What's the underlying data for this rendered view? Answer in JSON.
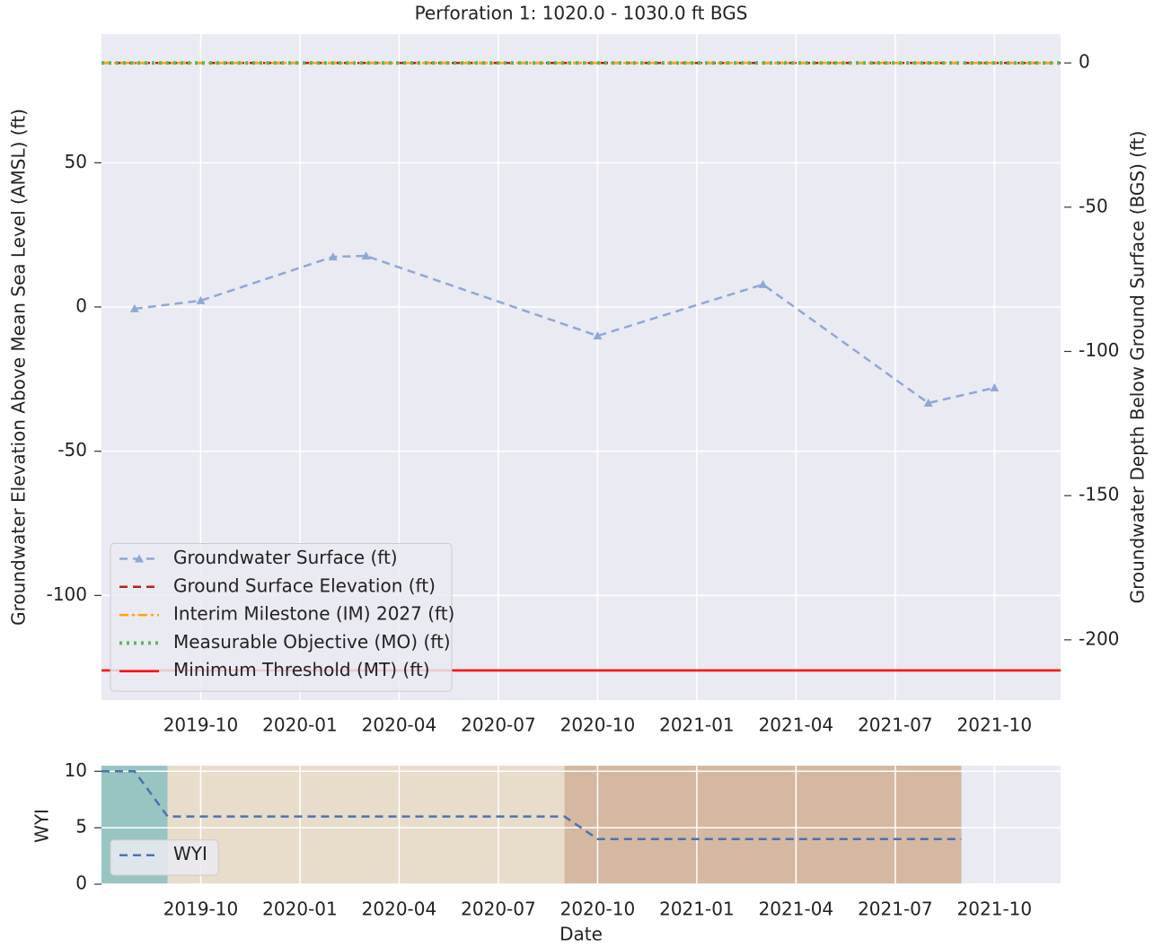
{
  "chart_data": [
    {
      "type": "line",
      "title": "Perforation 1: 1020.0 - 1030.0 ft BGS",
      "ylabel": "Groundwater Elevation Above Mean Sea Level (AMSL) (ft)",
      "y2label": "Groundwater Depth Below Ground Surface (BGS) (ft)",
      "x": [
        "2019-08",
        "2019-10",
        "2020-02",
        "2020-03",
        "2020-10",
        "2021-03",
        "2021-08",
        "2021-10"
      ],
      "series": [
        {
          "name": "Groundwater Surface (ft)",
          "color": "#8fa8d6",
          "style": "dashed",
          "marker": "triangle",
          "values": [
            -0.6,
            2.2,
            17.4,
            17.7,
            -10,
            7.8,
            -33.3,
            -28
          ]
        }
      ],
      "hlines": [
        {
          "name": "Ground Surface Elevation (ft)",
          "color": "#b22222",
          "style": "dashed",
          "value": 84.6
        },
        {
          "name": "Interim Milestone (IM) 2027 (ft)",
          "color": "#ffa500",
          "style": "dashdot",
          "value": 84.6
        },
        {
          "name": "Measurable Objective (MO) (ft)",
          "color": "#5cb85c",
          "style": "dotted",
          "value": 84.6
        },
        {
          "name": "Minimum Threshold (MT) (ft)",
          "color": "#ff0000",
          "style": "solid",
          "value": -126
        }
      ],
      "xlim": [
        "2019-07",
        "2021-12"
      ],
      "xticks": [
        "2019-10",
        "2020-01",
        "2020-04",
        "2020-07",
        "2020-10",
        "2021-01",
        "2021-04",
        "2021-07",
        "2021-10"
      ],
      "ylim": [
        -136.3,
        94.6
      ],
      "yticks": [
        -100,
        -50,
        0,
        50
      ],
      "y2lim": [
        -220.9,
        10
      ],
      "y2ticks": [
        -200,
        -150,
        -100,
        -50,
        0
      ],
      "grid": true,
      "legend": "lower left"
    },
    {
      "type": "line",
      "ylabel": "WYI",
      "xlabel": "Date",
      "x": [
        "2019-07",
        "2019-08",
        "2019-09",
        "2019-10",
        "2019-11",
        "2019-12",
        "2020-01",
        "2020-02",
        "2020-03",
        "2020-04",
        "2020-05",
        "2020-06",
        "2020-07",
        "2020-08",
        "2020-09",
        "2020-10",
        "2020-11",
        "2020-12",
        "2021-01",
        "2021-02",
        "2021-03",
        "2021-04",
        "2021-05",
        "2021-06",
        "2021-07",
        "2021-08",
        "2021-09"
      ],
      "series": [
        {
          "name": "WYI",
          "color": "#4c72b0",
          "style": "dashed",
          "values": [
            10,
            10,
            6,
            6,
            6,
            6,
            6,
            6,
            6,
            6,
            6,
            6,
            6,
            6,
            6,
            4,
            4,
            4,
            4,
            4,
            4,
            4,
            4,
            4,
            4,
            4,
            4
          ]
        }
      ],
      "bands": [
        {
          "start": "2019-07",
          "end": "2019-09",
          "color": "#98c5c2"
        },
        {
          "start": "2019-09",
          "end": "2020-09",
          "color": "#e8dccb"
        },
        {
          "start": "2020-09",
          "end": "2021-09",
          "color": "#d4b8a2"
        }
      ],
      "xlim": [
        "2019-07",
        "2021-12"
      ],
      "xticks": [
        "2019-10",
        "2020-01",
        "2020-04",
        "2020-07",
        "2020-10",
        "2021-01",
        "2021-04",
        "2021-07",
        "2021-10"
      ],
      "ylim": [
        0,
        10.5
      ],
      "yticks": [
        0,
        5,
        10
      ],
      "grid": true,
      "legend": "lower left"
    }
  ]
}
